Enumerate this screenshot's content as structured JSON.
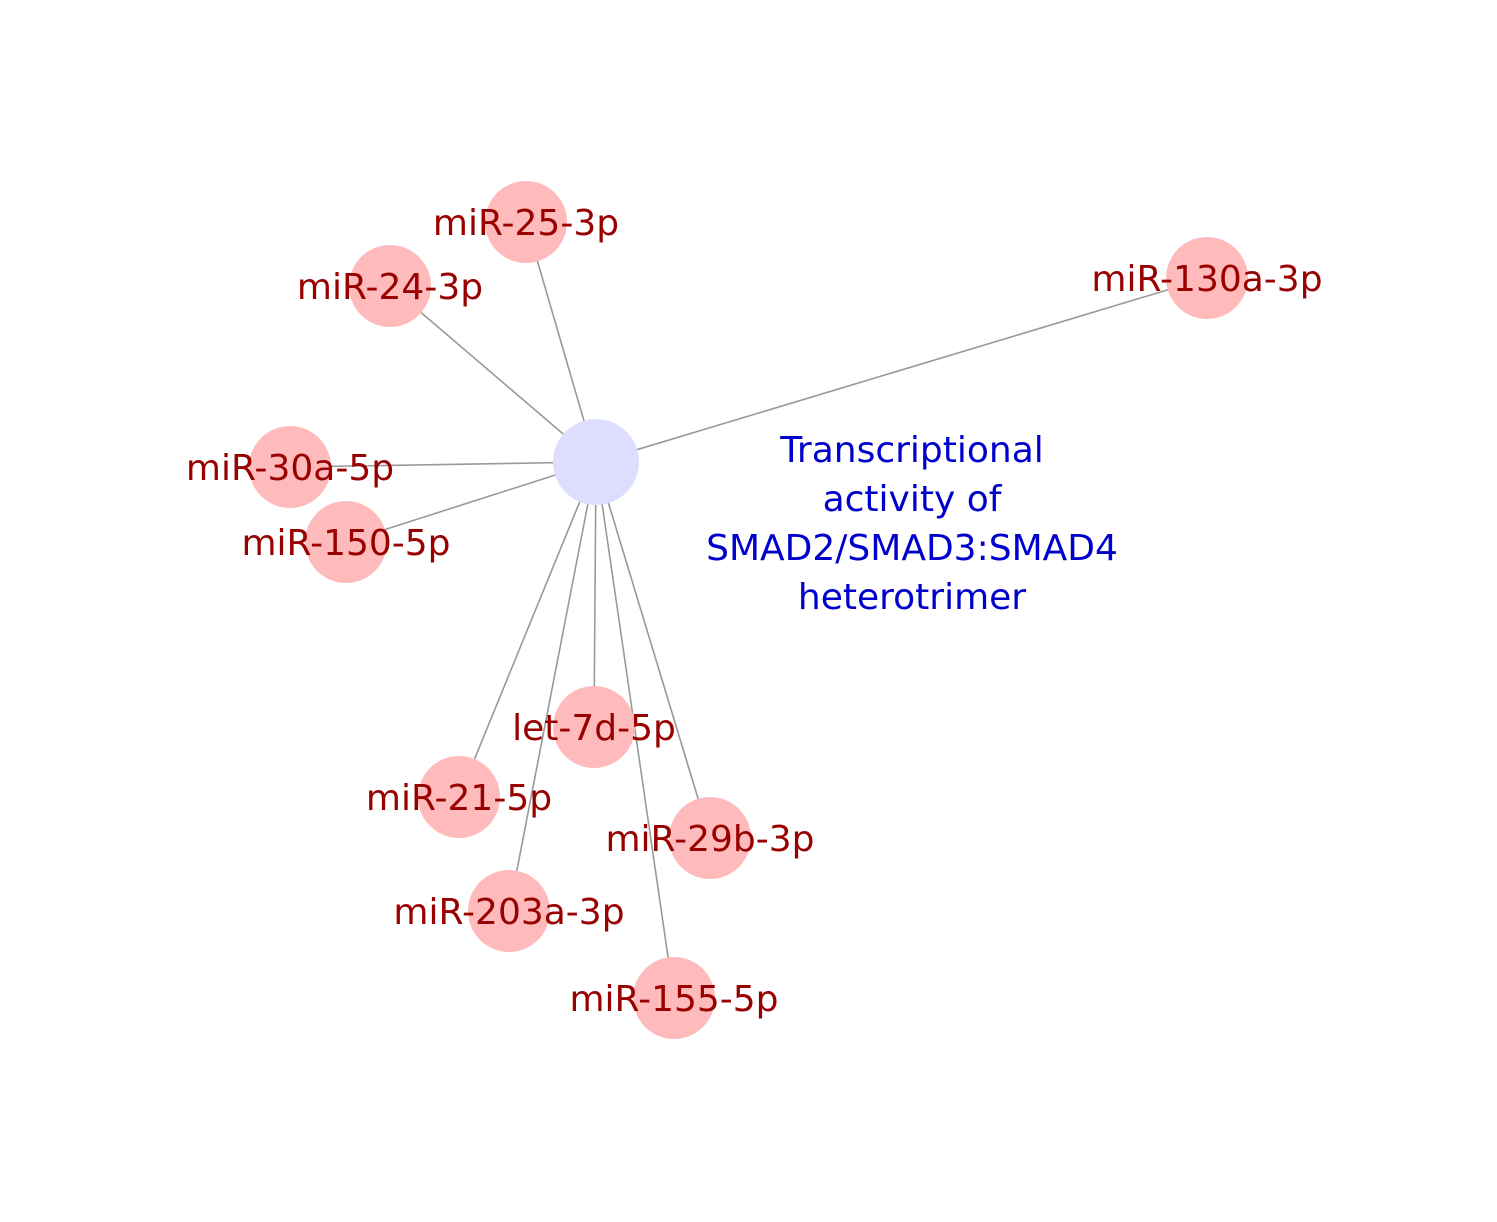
{
  "network": {
    "hub": {
      "label_lines": [
        "Transcriptional",
        "activity of",
        "SMAD2/SMAD3:SMAD4",
        "heterotrimer"
      ],
      "color": "#ddddff",
      "label_color": "#0000cc"
    },
    "mirnas": [
      {
        "id": "miR-25-3p",
        "label": "miR-25-3p"
      },
      {
        "id": "miR-24-3p",
        "label": "miR-24-3p"
      },
      {
        "id": "miR-130a-3p",
        "label": "miR-130a-3p"
      },
      {
        "id": "miR-30a-5p",
        "label": "miR-30a-5p"
      },
      {
        "id": "miR-150-5p",
        "label": "miR-150-5p"
      },
      {
        "id": "let-7d-5p",
        "label": "let-7d-5p"
      },
      {
        "id": "miR-21-5p",
        "label": "miR-21-5p"
      },
      {
        "id": "miR-29b-3p",
        "label": "miR-29b-3p"
      },
      {
        "id": "miR-203a-3p",
        "label": "miR-203a-3p"
      },
      {
        "id": "miR-155-5p",
        "label": "miR-155-5p"
      }
    ],
    "colors": {
      "mirna_node": "#ffbbbb",
      "mirna_label": "#990000",
      "edge": "#999999"
    }
  }
}
